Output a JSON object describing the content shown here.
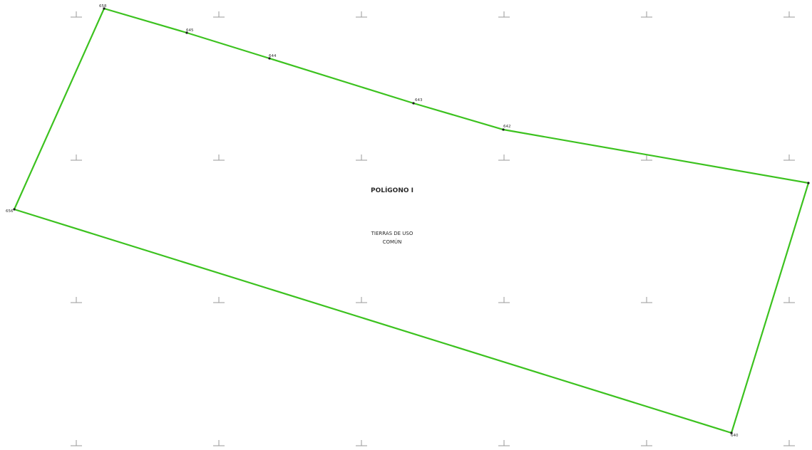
{
  "map": {
    "title": "POLÍGONO I",
    "subtitle_line1": "TIERRAS DE USO",
    "subtitle_line2": "COMÚN",
    "boundary_color": "#3cc21f",
    "grid_mark_color": "#9a9a9a",
    "vertex_labels": [
      "658",
      "645",
      "644",
      "643",
      "642",
      "",
      "640",
      "656"
    ]
  }
}
